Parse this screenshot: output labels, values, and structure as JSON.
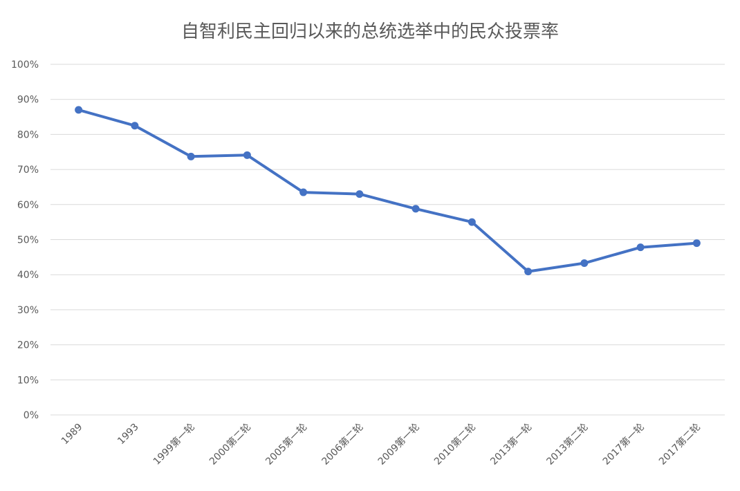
{
  "chart_data": {
    "type": "line",
    "title": "自智利民主回归以来的总统选举中的民众投票率",
    "categories": [
      "1989",
      "1993",
      "1999第一轮",
      "2000第二轮",
      "2005第一轮",
      "2006第二轮",
      "2009第一轮",
      "2010第二轮",
      "2013第一轮",
      "2013第二轮",
      "2017第一轮",
      "2017第二轮"
    ],
    "series": [
      {
        "color": "#4472C4",
        "values": [
          0.87,
          0.825,
          0.737,
          0.741,
          0.635,
          0.63,
          0.588,
          0.55,
          0.409,
          0.433,
          0.478,
          0.49
        ]
      }
    ],
    "xlabel": "",
    "ylabel": "",
    "ylim": [
      0,
      1
    ],
    "y_ticks": [
      "0%",
      "10%",
      "20%",
      "30%",
      "40%",
      "50%",
      "60%",
      "70%",
      "80%",
      "90%",
      "100%"
    ],
    "grid": true,
    "legend": "none"
  }
}
